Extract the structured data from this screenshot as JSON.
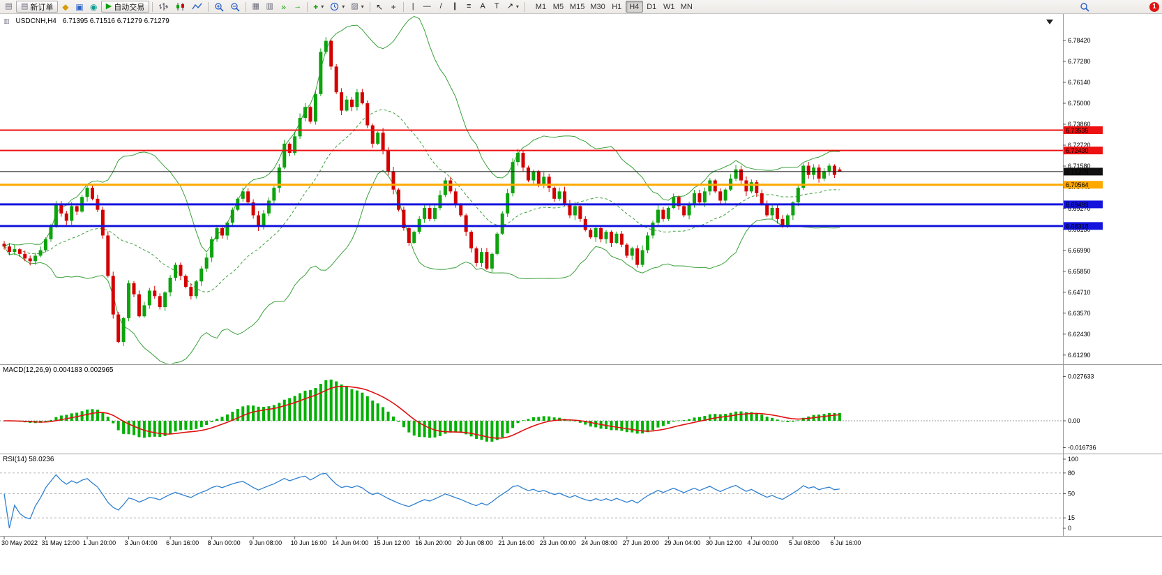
{
  "toolbar": {
    "new_order": "新订单",
    "autotrading": "自动交易",
    "timeframes": [
      "M1",
      "M5",
      "M15",
      "M30",
      "H1",
      "H4",
      "D1",
      "W1",
      "MN"
    ],
    "active_timeframe": "H4",
    "notification_badge": "1",
    "icons": {
      "new_chart": "▤",
      "new_order_icon": "▤",
      "metaeditor": "◆",
      "terminal": "▣",
      "tester": "◉",
      "play": "▶",
      "tile": "▦",
      "cascade": "▥",
      "autoscroll": "»",
      "chart_shift": "→",
      "indicators": "+",
      "templates": "▨",
      "cursor": "↖",
      "crosshair": "+",
      "vline": "|",
      "hline": "—",
      "trendline": "/",
      "channel": "∥",
      "fibonacci": "≡",
      "text": "A",
      "label": "T",
      "arrows": "↗",
      "dropdown": "▾",
      "scroll_marker": "▼"
    }
  },
  "chart": {
    "symbol_title": "USDCNH,H4",
    "ohlc": "6.71395 6.71516 6.71279 6.71279",
    "price_axis": [
      "6.78420",
      "6.77280",
      "6.76140",
      "6.75000",
      "6.73860",
      "6.72720",
      "6.71580",
      "6.70440",
      "6.69270",
      "6.68130",
      "6.66990",
      "6.65850",
      "6.64710",
      "6.63570",
      "6.62430",
      "6.61290"
    ],
    "levels": [
      {
        "price": 6.73535,
        "label": "6.73535",
        "color": "#ee1111",
        "thickness": 2
      },
      {
        "price": 6.7243,
        "label": "6.72430",
        "color": "#ee1111",
        "thickness": 2
      },
      {
        "price": 6.70564,
        "label": "6.70564",
        "color": "#ffa800",
        "thickness": 3
      },
      {
        "price": 6.69493,
        "label": "6.69493",
        "color": "#1414dd",
        "thickness": 3
      },
      {
        "price": 6.68318,
        "label": "6.68318",
        "color": "#1414dd",
        "thickness": 3
      }
    ],
    "current_price": {
      "price": 6.71279,
      "label": "6.71279",
      "color": "#111111"
    },
    "time_axis": [
      "30 May 2022",
      "31 May 12:00",
      "1 Jun 20:00",
      "3 Jun 04:00",
      "6 Jun 16:00",
      "8 Jun 00:00",
      "9 Jun 08:00",
      "10 Jun 16:00",
      "14 Jun 04:00",
      "15 Jun 12:00",
      "16 Jun 20:00",
      "20 Jun 08:00",
      "21 Jun 16:00",
      "23 Jun 00:00",
      "24 Jun 08:00",
      "27 Jun 20:00",
      "29 Jun 04:00",
      "30 Jun 12:00",
      "4 Jul 00:00",
      "5 Jul 08:00",
      "6 Jul 16:00"
    ]
  },
  "macd": {
    "label": "MACD(12,26,9) 0.004183 0.002965",
    "axis": [
      "0.027633",
      "0.00",
      "-0.016736"
    ]
  },
  "rsi": {
    "label": "RSI(14) 58.0236",
    "axis": [
      "100",
      "80",
      "50",
      "15",
      "0"
    ],
    "levels": [
      80,
      50,
      15
    ]
  },
  "chart_data": {
    "type": "candlestick",
    "symbol": "USDCNH",
    "timeframe": "H4",
    "ylim": [
      6.6129,
      6.7842
    ],
    "candle_up_color": "#0ca30c",
    "candle_down_color": "#d40000",
    "closes": [
      6.672,
      6.669,
      6.6705,
      6.668,
      6.6655,
      6.664,
      6.667,
      6.67,
      6.676,
      6.683,
      6.695,
      6.69,
      6.686,
      6.694,
      6.691,
      6.699,
      6.704,
      6.698,
      6.692,
      6.678,
      6.656,
      6.635,
      6.62,
      6.633,
      6.652,
      6.646,
      6.634,
      6.64,
      6.648,
      6.645,
      6.639,
      6.647,
      6.655,
      6.662,
      6.656,
      6.65,
      6.645,
      6.653,
      6.66,
      6.666,
      6.676,
      6.682,
      6.678,
      6.685,
      6.692,
      6.698,
      6.702,
      6.696,
      6.689,
      6.683,
      6.69,
      6.697,
      6.704,
      6.715,
      6.728,
      6.723,
      6.732,
      6.742,
      6.748,
      6.74,
      6.755,
      6.778,
      6.784,
      6.77,
      6.756,
      6.746,
      6.752,
      6.748,
      6.756,
      6.75,
      6.738,
      6.728,
      6.734,
      6.724,
      6.713,
      6.703,
      6.692,
      6.682,
      6.674,
      6.68,
      6.687,
      6.693,
      6.687,
      6.693,
      6.7,
      6.708,
      6.702,
      6.695,
      6.689,
      6.68,
      6.671,
      6.663,
      6.669,
      6.66,
      6.668,
      6.679,
      6.69,
      6.701,
      6.718,
      6.723,
      6.715,
      6.708,
      6.713,
      6.706,
      6.71,
      6.704,
      6.698,
      6.702,
      6.695,
      6.689,
      6.694,
      6.687,
      6.681,
      6.677,
      6.682,
      6.676,
      6.68,
      6.674,
      6.679,
      6.673,
      6.667,
      6.671,
      6.662,
      6.67,
      6.678,
      6.685,
      6.692,
      6.687,
      6.693,
      6.699,
      6.694,
      6.689,
      6.695,
      6.701,
      6.696,
      6.702,
      6.708,
      6.702,
      6.697,
      6.703,
      6.709,
      6.714,
      6.708,
      6.702,
      6.707,
      6.701,
      6.695,
      6.689,
      6.693,
      6.687,
      6.683,
      6.689,
      6.696,
      6.704,
      6.716,
      6.711,
      6.715,
      6.709,
      6.713,
      6.716,
      6.711,
      6.71279
    ],
    "last_ohlc": {
      "open": 6.71395,
      "high": 6.71516,
      "low": 6.71279,
      "close": 6.71279
    },
    "indicators": [
      {
        "type": "bollinger",
        "period": 20,
        "deviation": 2,
        "color": "#3aa03a"
      },
      {
        "type": "macd",
        "fast": 12,
        "slow": 26,
        "signal": 9,
        "macd_value": 0.004183,
        "signal_value": 0.002965,
        "histogram_color": "#00b100",
        "signal_color": "#e01010",
        "axis_max": 0.027633,
        "axis_min": -0.016736
      },
      {
        "type": "rsi",
        "period": 14,
        "value": 58.0236,
        "color": "#2f80d0",
        "scale": [
          0,
          100
        ]
      }
    ]
  }
}
